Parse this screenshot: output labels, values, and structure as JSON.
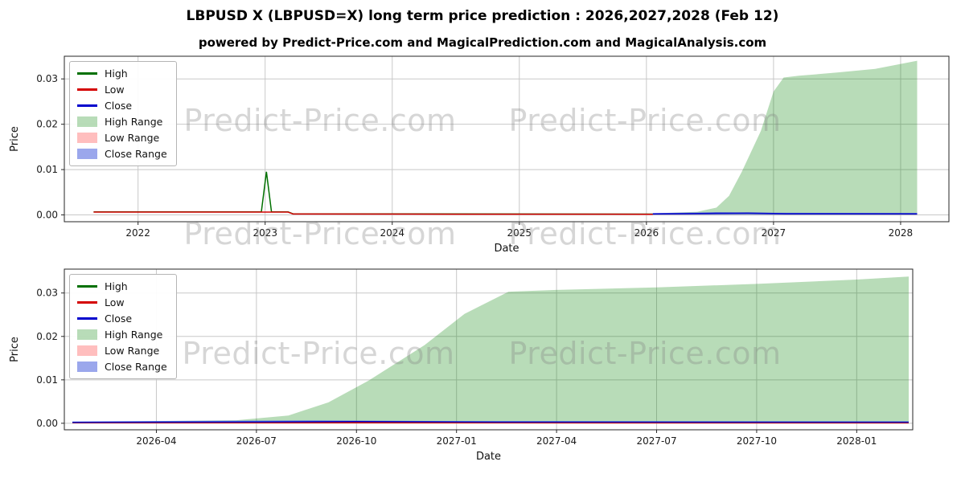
{
  "title": "LBPUSD X (LBPUSD=X) long term price prediction : 2026,2027,2028 (Feb 12)",
  "subtitle": "powered by Predict-Price.com and MagicalPrediction.com and MagicalAnalysis.com",
  "watermark": {
    "text": "Predict-Price.com"
  },
  "colors": {
    "high_line": "#007000",
    "low_line": "#d40000",
    "close_line": "#0000cd",
    "high_range_fill": "rgba(0,128,0,0.28)",
    "low_range_fill": "rgba(255,70,70,0.35)",
    "close_range_fill": "rgba(72,94,220,0.55)",
    "grid": "#c8c8c8",
    "spine": "#262626"
  },
  "chart_data": [
    {
      "type": "line",
      "title": "",
      "xlabel": "Date",
      "ylabel": "Price",
      "grid": true,
      "legend_position": "upper-left",
      "xlim": [
        2021.42,
        2028.38
      ],
      "ylim": [
        -0.0015,
        0.035
      ],
      "yticks": [
        {
          "v": 0.0,
          "label": "0.00"
        },
        {
          "v": 0.01,
          "label": "0.01"
        },
        {
          "v": 0.02,
          "label": "0.02"
        },
        {
          "v": 0.03,
          "label": "0.03"
        }
      ],
      "xticks": [
        {
          "v": 2022,
          "label": "2022"
        },
        {
          "v": 2023,
          "label": "2023"
        },
        {
          "v": 2024,
          "label": "2024"
        },
        {
          "v": 2025,
          "label": "2025"
        },
        {
          "v": 2026,
          "label": "2026"
        },
        {
          "v": 2027,
          "label": "2027"
        },
        {
          "v": 2028,
          "label": "2028"
        }
      ],
      "legend": [
        {
          "label": "High",
          "type": "line",
          "color": "#007000"
        },
        {
          "label": "Low",
          "type": "line",
          "color": "#d40000"
        },
        {
          "label": "Close",
          "type": "line",
          "color": "#0000cd"
        },
        {
          "label": "High Range",
          "type": "patch",
          "color": "rgba(0,128,0,0.28)"
        },
        {
          "label": "Low Range",
          "type": "patch",
          "color": "rgba(255,70,70,0.35)"
        },
        {
          "label": "Close Range",
          "type": "patch",
          "color": "rgba(72,94,220,0.55)"
        }
      ],
      "series": [
        {
          "name": "High Range",
          "kind": "area",
          "color": "rgba(0,128,0,0.28)",
          "points": [
            [
              2026.05,
              0.0003
            ],
            [
              2026.4,
              0.0007
            ],
            [
              2026.55,
              0.0016
            ],
            [
              2026.65,
              0.0042
            ],
            [
              2026.75,
              0.0095
            ],
            [
              2026.9,
              0.0185
            ],
            [
              2027.0,
              0.0272
            ],
            [
              2027.08,
              0.0303
            ],
            [
              2027.2,
              0.0307
            ],
            [
              2027.5,
              0.0314
            ],
            [
              2027.8,
              0.0322
            ],
            [
              2028.13,
              0.034
            ]
          ]
        },
        {
          "name": "Low Range",
          "kind": "area",
          "color": "rgba(255,70,70,0.35)",
          "points": [
            [
              2026.05,
              0.00012
            ],
            [
              2028.13,
              0.0001
            ]
          ]
        },
        {
          "name": "Close Range",
          "kind": "area",
          "color": "rgba(72,94,220,0.55)",
          "points": [
            [
              2026.05,
              0.0004
            ],
            [
              2026.55,
              0.0006
            ],
            [
              2026.8,
              0.0005
            ],
            [
              2028.13,
              0.0004
            ]
          ]
        },
        {
          "name": "High",
          "kind": "line",
          "color": "#007000",
          "width": 1.5,
          "points": [
            [
              2021.65,
              0.00068
            ],
            [
              2022.97,
              0.00068
            ],
            [
              2023.01,
              0.0095
            ],
            [
              2023.05,
              0.00068
            ],
            [
              2023.18,
              0.00068
            ],
            [
              2023.22,
              0.00024
            ],
            [
              2026.05,
              0.00018
            ]
          ]
        },
        {
          "name": "Low",
          "kind": "line",
          "color": "#d40000",
          "width": 1.5,
          "points": [
            [
              2021.65,
              0.00062
            ],
            [
              2023.18,
              0.00062
            ],
            [
              2023.22,
              0.0002
            ],
            [
              2024.5,
              0.00017
            ],
            [
              2026.05,
              0.00014
            ]
          ]
        },
        {
          "name": "Close",
          "kind": "line",
          "color": "#0000cd",
          "width": 1.5,
          "points": [
            [
              2026.05,
              0.00022
            ],
            [
              2026.5,
              0.00035
            ],
            [
              2026.8,
              0.0004
            ],
            [
              2027.1,
              0.00028
            ],
            [
              2028.13,
              0.00025
            ]
          ]
        }
      ]
    },
    {
      "type": "line",
      "title": "",
      "xlabel": "Date",
      "ylabel": "Price",
      "grid": true,
      "legend_position": "upper-left",
      "xlim": [
        2026.02,
        2028.14
      ],
      "ylim": [
        -0.0015,
        0.0355
      ],
      "yticks": [
        {
          "v": 0.0,
          "label": "0.00"
        },
        {
          "v": 0.01,
          "label": "0.01"
        },
        {
          "v": 0.02,
          "label": "0.02"
        },
        {
          "v": 0.03,
          "label": "0.03"
        }
      ],
      "xticks": [
        {
          "v": 2026.25,
          "label": "2026-04"
        },
        {
          "v": 2026.5,
          "label": "2026-07"
        },
        {
          "v": 2026.75,
          "label": "2026-10"
        },
        {
          "v": 2027.0,
          "label": "2027-01"
        },
        {
          "v": 2027.25,
          "label": "2027-04"
        },
        {
          "v": 2027.5,
          "label": "2027-07"
        },
        {
          "v": 2027.75,
          "label": "2027-10"
        },
        {
          "v": 2028.0,
          "label": "2028-01"
        }
      ],
      "legend": [
        {
          "label": "High",
          "type": "line",
          "color": "#007000"
        },
        {
          "label": "Low",
          "type": "line",
          "color": "#d40000"
        },
        {
          "label": "Close",
          "type": "line",
          "color": "#0000cd"
        },
        {
          "label": "High Range",
          "type": "patch",
          "color": "rgba(0,128,0,0.28)"
        },
        {
          "label": "Low Range",
          "type": "patch",
          "color": "rgba(255,70,70,0.35)"
        },
        {
          "label": "Close Range",
          "type": "patch",
          "color": "rgba(72,94,220,0.55)"
        }
      ],
      "series": [
        {
          "name": "High Range",
          "kind": "area",
          "color": "rgba(0,128,0,0.28)",
          "points": [
            [
              2026.04,
              0.00028
            ],
            [
              2026.45,
              0.0007
            ],
            [
              2026.58,
              0.0018
            ],
            [
              2026.68,
              0.0048
            ],
            [
              2026.78,
              0.0098
            ],
            [
              2026.92,
              0.018
            ],
            [
              2027.02,
              0.0252
            ],
            [
              2027.13,
              0.0303
            ],
            [
              2027.25,
              0.0307
            ],
            [
              2027.5,
              0.0313
            ],
            [
              2027.75,
              0.0321
            ],
            [
              2028.0,
              0.0331
            ],
            [
              2028.13,
              0.0338
            ]
          ]
        },
        {
          "name": "Low Range",
          "kind": "area",
          "color": "rgba(255,70,70,0.35)",
          "points": [
            [
              2026.04,
              0.0001
            ],
            [
              2028.13,
              8e-05
            ]
          ]
        },
        {
          "name": "Close Range",
          "kind": "area",
          "color": "rgba(72,94,220,0.55)",
          "points": [
            [
              2026.04,
              0.00042
            ],
            [
              2026.65,
              0.0007
            ],
            [
              2027.0,
              0.0005
            ],
            [
              2028.13,
              0.00042
            ]
          ]
        },
        {
          "name": "High",
          "kind": "line",
          "color": "#007000",
          "width": 1.5,
          "points": [
            [
              2026.04,
              0.0002
            ],
            [
              2028.13,
              0.00018
            ]
          ]
        },
        {
          "name": "Low",
          "kind": "line",
          "color": "#d40000",
          "width": 1.5,
          "points": [
            [
              2026.04,
              0.00013
            ],
            [
              2028.13,
              0.0001
            ]
          ]
        },
        {
          "name": "Close",
          "kind": "line",
          "color": "#0000cd",
          "width": 1.5,
          "points": [
            [
              2026.04,
              0.00022
            ],
            [
              2026.5,
              0.00032
            ],
            [
              2026.75,
              0.00038
            ],
            [
              2027.1,
              0.00028
            ],
            [
              2028.13,
              0.00025
            ]
          ]
        }
      ]
    }
  ]
}
